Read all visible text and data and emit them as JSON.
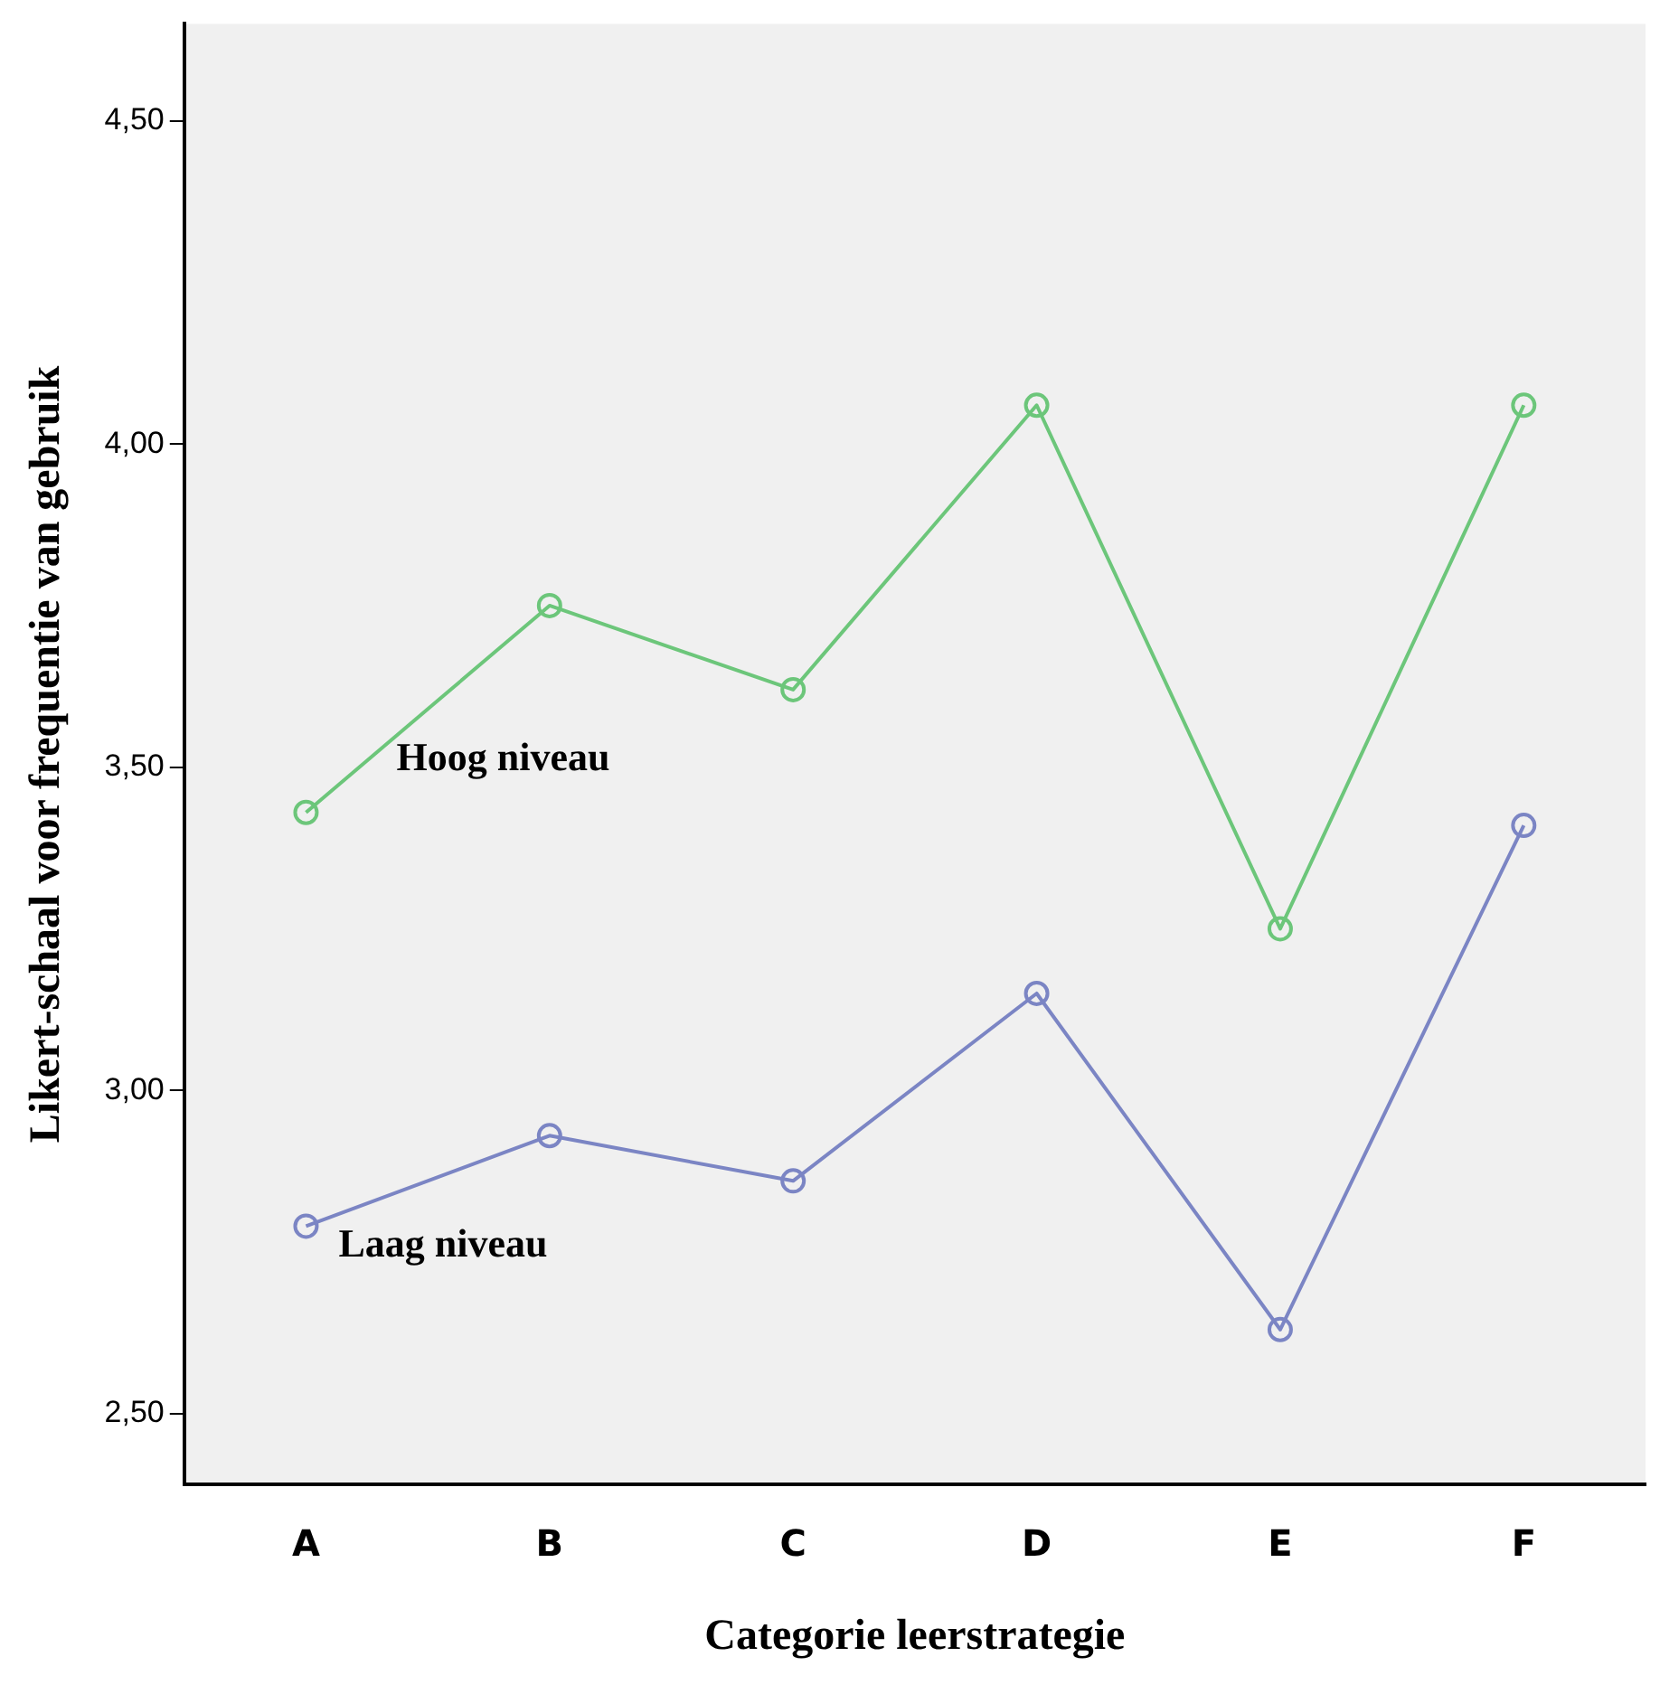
{
  "chart_data": {
    "type": "line",
    "xlabel": "Categorie leerstrategie",
    "ylabel": "Likert-schaal voor frequentie van gebruik",
    "categories": [
      "A",
      "B",
      "C",
      "D",
      "E",
      "F"
    ],
    "series": [
      {
        "name": "Hoog niveau",
        "color": "#6cc67a",
        "values": [
          3.43,
          3.75,
          3.62,
          4.06,
          3.25,
          4.06
        ]
      },
      {
        "name": "Laag niveau",
        "color": "#7b85c4",
        "values": [
          2.79,
          2.93,
          2.86,
          3.15,
          2.63,
          3.41
        ]
      }
    ],
    "ylim": [
      2.39,
      4.65
    ],
    "yticks": [
      {
        "value": 2.5,
        "label": "2,50"
      },
      {
        "value": 3,
        "label": "3,00"
      },
      {
        "value": 3.5,
        "label": "3,50"
      },
      {
        "value": 4,
        "label": "4,00"
      },
      {
        "value": 4.5,
        "label": "4,50"
      }
    ],
    "grid": false,
    "legend": false,
    "marker": "circle",
    "line_style": "solid"
  }
}
